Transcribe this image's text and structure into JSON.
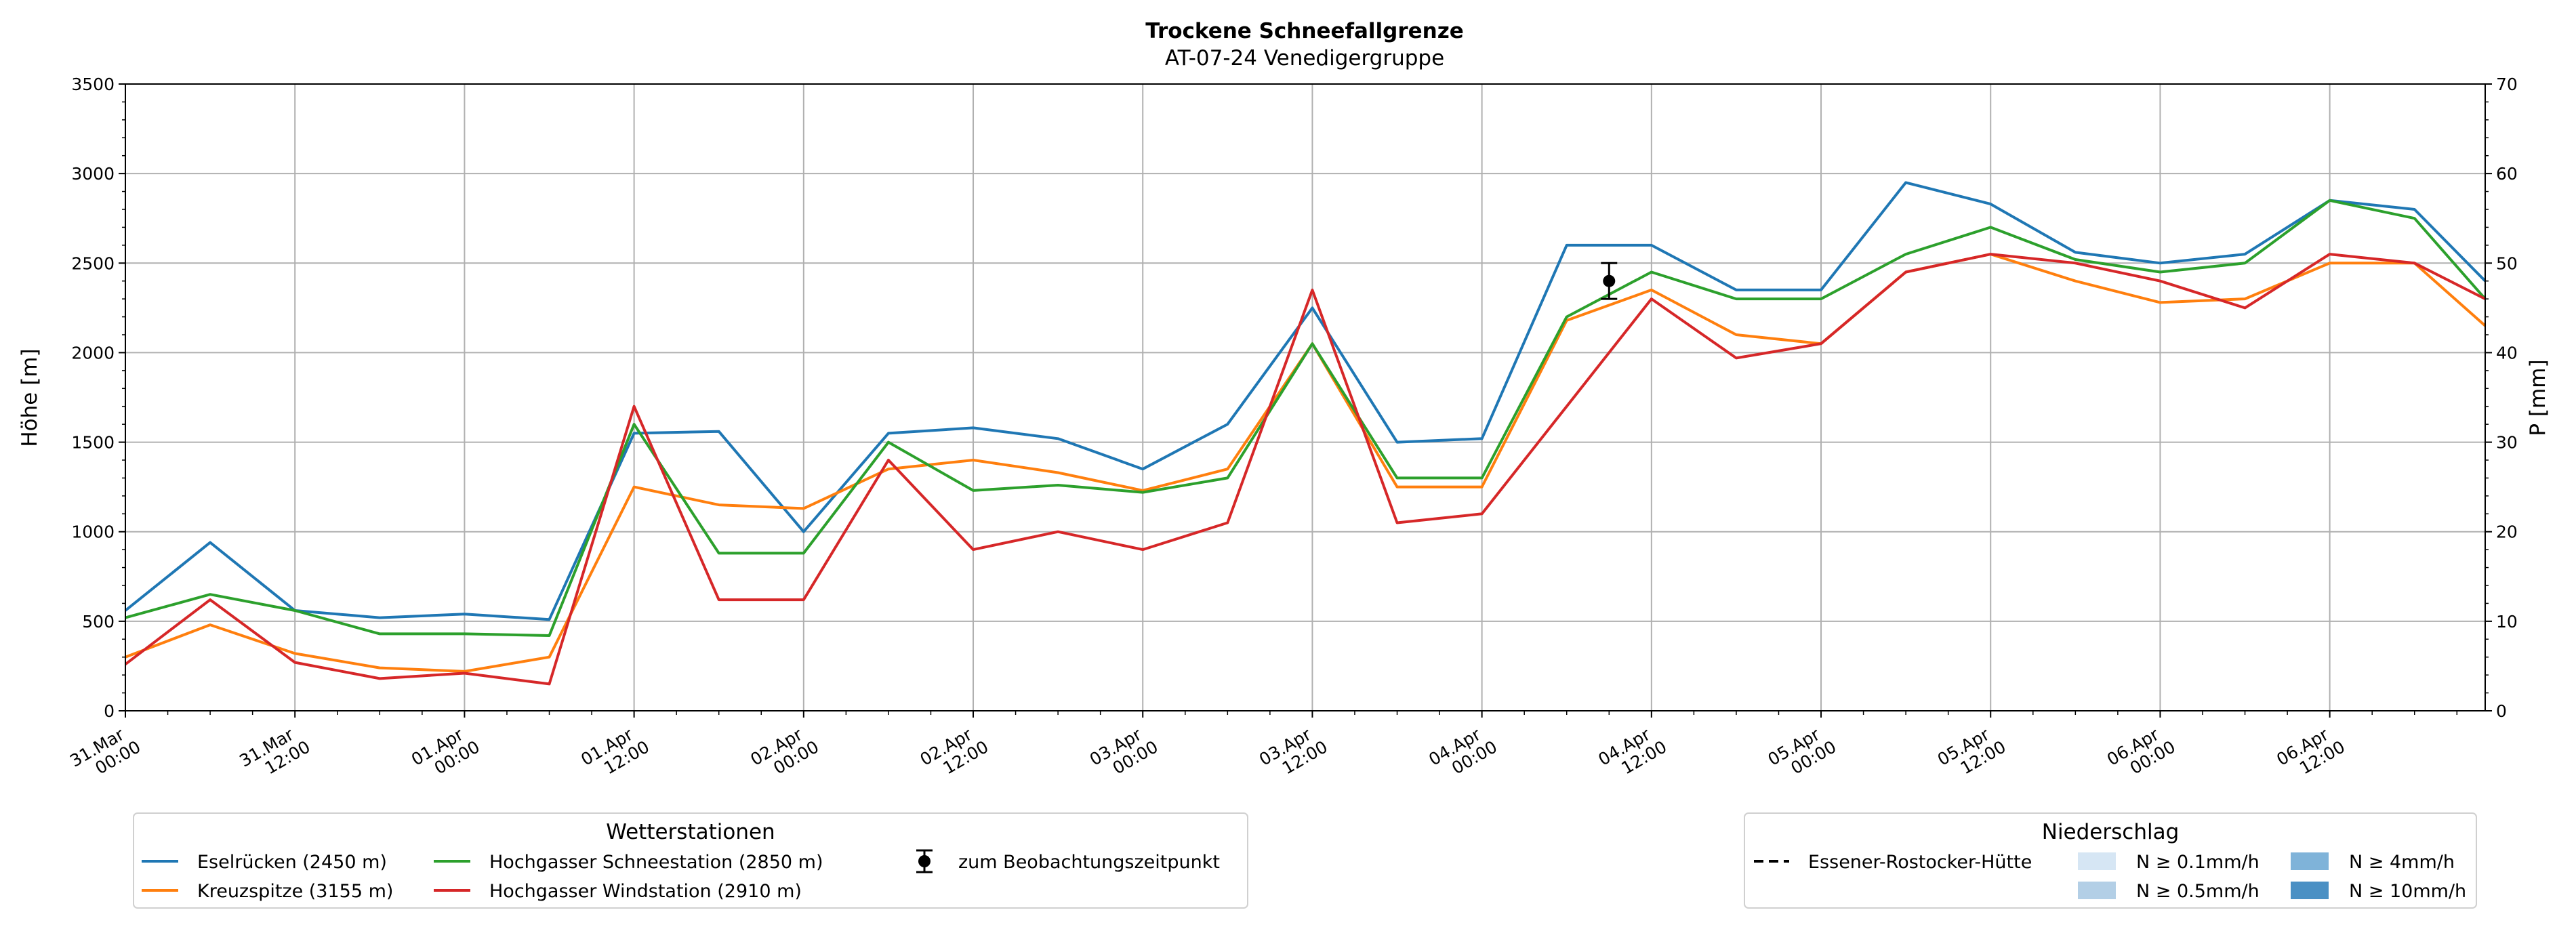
{
  "chart_data": {
    "type": "line",
    "title": "Trockene Schneefallgrenze",
    "subtitle": "AT-07-24 Venedigergruppe",
    "ylabel": "Höhe [m]",
    "y2label": "P [mm]",
    "ylim": [
      0,
      3500
    ],
    "y2lim": [
      0,
      70
    ],
    "yticks": [
      0,
      500,
      1000,
      1500,
      2000,
      2500,
      3000,
      3500
    ],
    "y2ticks": [
      0,
      10,
      20,
      30,
      40,
      50,
      60,
      70
    ],
    "xlim_hours": [
      0,
      167
    ],
    "grid": true,
    "xtick_labels": [
      [
        "31.Mar",
        "00:00"
      ],
      [
        "31.Mar",
        "12:00"
      ],
      [
        "01.Apr",
        "00:00"
      ],
      [
        "01.Apr",
        "12:00"
      ],
      [
        "02.Apr",
        "00:00"
      ],
      [
        "02.Apr",
        "12:00"
      ],
      [
        "03.Apr",
        "00:00"
      ],
      [
        "03.Apr",
        "12:00"
      ],
      [
        "04.Apr",
        "00:00"
      ],
      [
        "04.Apr",
        "12:00"
      ],
      [
        "05.Apr",
        "00:00"
      ],
      [
        "05.Apr",
        "12:00"
      ],
      [
        "06.Apr",
        "00:00"
      ],
      [
        "06.Apr",
        "12:00"
      ]
    ],
    "x_hours": [
      0,
      6,
      12,
      18,
      24,
      30,
      36,
      42,
      48,
      54,
      60,
      66,
      72,
      78,
      84,
      90,
      96,
      102,
      108,
      114,
      120,
      126,
      132,
      138,
      144,
      150,
      156,
      162,
      167
    ],
    "series": [
      {
        "name": "Eselrücken (2450 m)",
        "color": "#1f77b4",
        "values": [
          560,
          940,
          560,
          520,
          540,
          510,
          1550,
          1560,
          1000,
          1550,
          1580,
          1520,
          1350,
          1600,
          2250,
          1500,
          1520,
          2600,
          2600,
          2350,
          2350,
          2950,
          2830,
          2560,
          2500,
          2550,
          2850,
          2800,
          2400
        ]
      },
      {
        "name": "Kreuzspitze (3155 m)",
        "color": "#ff7f0e",
        "values": [
          300,
          480,
          320,
          240,
          220,
          300,
          1250,
          1150,
          1130,
          1350,
          1400,
          1330,
          1230,
          1350,
          2050,
          1250,
          1250,
          2180,
          2350,
          2100,
          2050,
          2450,
          2550,
          2400,
          2280,
          2300,
          2500,
          2500,
          2150
        ]
      },
      {
        "name": "Hochgasser Schneestation (2850 m)",
        "color": "#2ca02c",
        "values": [
          520,
          650,
          560,
          430,
          430,
          420,
          1600,
          880,
          880,
          1500,
          1230,
          1260,
          1220,
          1300,
          2050,
          1300,
          1300,
          2200,
          2450,
          2300,
          2300,
          2550,
          2700,
          2520,
          2450,
          2500,
          2850,
          2750,
          2300
        ]
      },
      {
        "name": "Hochgasser Windstation (2910 m)",
        "color": "#d62728",
        "values": [
          260,
          620,
          270,
          180,
          210,
          150,
          1700,
          620,
          620,
          1400,
          900,
          1000,
          900,
          1050,
          2350,
          1050,
          1100,
          1700,
          2300,
          1970,
          2050,
          2450,
          2550,
          2500,
          2400,
          2250,
          2550,
          2500,
          2300
        ]
      }
    ],
    "observation": {
      "label": "zum Beobachtungszeitpunkt",
      "x_hour": 105,
      "value": 2400,
      "error_low": 2300,
      "error_high": 2500
    },
    "legend_stations": {
      "title": "Wetterstationen",
      "placement": "bottom-left",
      "items": [
        "Eselrücken (2450 m)",
        "Kreuzspitze (3155 m)",
        "Hochgasser Schneestation (2850 m)",
        "Hochgasser Windstation (2910 m)",
        "zum Beobachtungszeitpunkt"
      ]
    },
    "legend_precip": {
      "title": "Niederschlag",
      "placement": "bottom-right",
      "line_label": "Essener-Rostocker-Hütte",
      "categories": [
        {
          "label": "N ≥ 0.1mm/h",
          "color": "#d6e6f4"
        },
        {
          "label": "N ≥ 0.5mm/h",
          "color": "#b3cfe6"
        },
        {
          "label": "N ≥ 4mm/h",
          "color": "#7fb3d9"
        },
        {
          "label": "N ≥ 10mm/h",
          "color": "#4a90c4"
        }
      ]
    }
  }
}
